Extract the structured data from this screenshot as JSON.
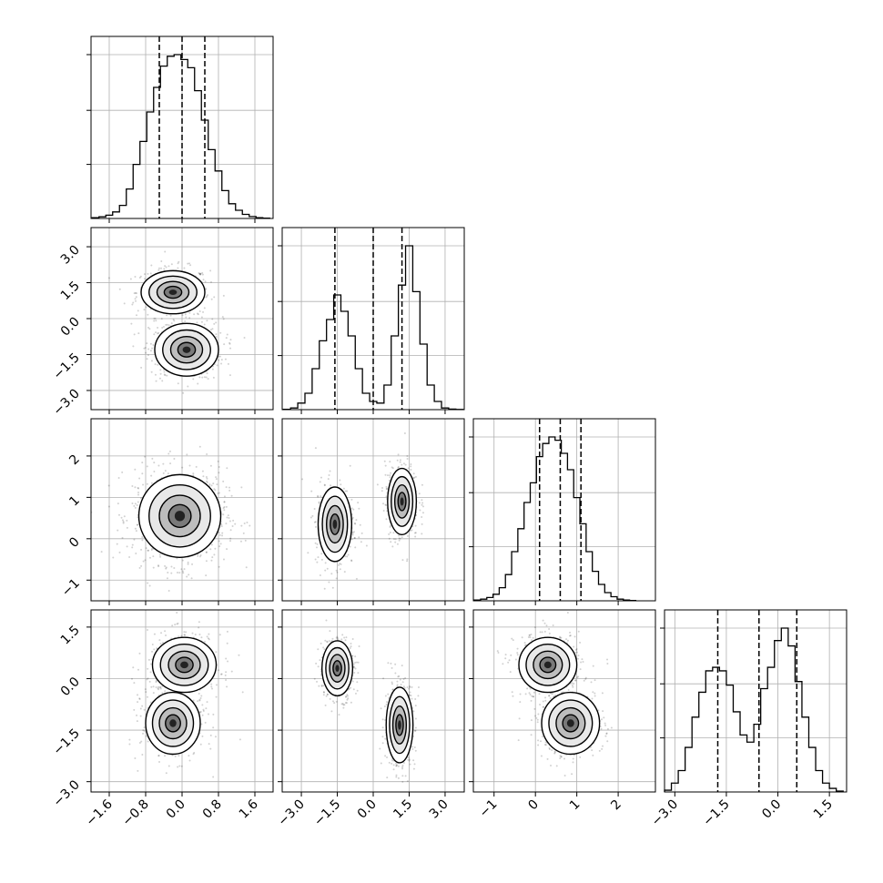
{
  "figure": {
    "type": "corner-plot",
    "params": 4,
    "axes_ranges": [
      [
        -2.0,
        2.0
      ],
      [
        -3.8,
        3.8
      ],
      [
        -1.5,
        2.9
      ],
      [
        -3.3,
        2.0
      ]
    ],
    "grid": true,
    "tick_labels_shared": {
      "p0": [
        "−1.6",
        "−0.8",
        "0.0",
        "0.8",
        "1.6"
      ],
      "p1": [
        "−3.0",
        "−1.5",
        "0.0",
        "1.5",
        "3.0"
      ],
      "p2": [
        "−1",
        "0",
        "1",
        "2"
      ],
      "p3": [
        "−3.0",
        "−1.5",
        "0.0",
        "1.5"
      ]
    }
  },
  "chart_data": [
    {
      "type": "histogram",
      "param": "p0",
      "x_range": [
        -2.0,
        2.0
      ],
      "bins": [
        -1.9,
        -1.75,
        -1.6,
        -1.45,
        -1.3,
        -1.15,
        -1.0,
        -0.85,
        -0.7,
        -0.55,
        -0.4,
        -0.25,
        -0.1,
        0.05,
        0.2,
        0.35,
        0.5,
        0.65,
        0.8,
        0.95,
        1.1,
        1.25,
        1.4,
        1.55,
        1.7,
        1.85
      ],
      "counts": [
        0.005,
        0.01,
        0.02,
        0.04,
        0.08,
        0.18,
        0.33,
        0.47,
        0.65,
        0.8,
        0.93,
        0.99,
        1.0,
        0.97,
        0.92,
        0.78,
        0.6,
        0.42,
        0.29,
        0.17,
        0.09,
        0.05,
        0.025,
        0.012,
        0.005,
        0.002
      ],
      "quantiles": [
        -0.5,
        0.0,
        0.5
      ]
    },
    {
      "type": "histogram",
      "param": "p1",
      "x_range": [
        -3.8,
        3.8
      ],
      "bins": [
        -3.6,
        -3.3,
        -3.0,
        -2.7,
        -2.4,
        -2.1,
        -1.8,
        -1.5,
        -1.2,
        -0.9,
        -0.6,
        -0.3,
        0.0,
        0.3,
        0.6,
        0.9,
        1.2,
        1.5,
        1.8,
        2.1,
        2.4,
        2.7,
        3.0,
        3.3,
        3.6
      ],
      "counts": [
        0.002,
        0.01,
        0.04,
        0.1,
        0.25,
        0.42,
        0.55,
        0.7,
        0.6,
        0.45,
        0.25,
        0.1,
        0.05,
        0.04,
        0.15,
        0.45,
        0.76,
        1.0,
        0.72,
        0.4,
        0.15,
        0.05,
        0.01,
        0.003,
        0.001
      ],
      "quantiles": [
        -1.6,
        0.0,
        1.2
      ]
    },
    {
      "type": "histogram",
      "param": "p2",
      "x_range": [
        -1.5,
        2.9
      ],
      "bins": [
        -1.4,
        -1.25,
        -1.1,
        -0.95,
        -0.8,
        -0.65,
        -0.5,
        -0.35,
        -0.2,
        -0.05,
        0.1,
        0.25,
        0.4,
        0.55,
        0.7,
        0.85,
        1.0,
        1.15,
        1.3,
        1.45,
        1.6,
        1.75,
        1.9,
        2.05,
        2.2,
        2.35
      ],
      "counts": [
        0.005,
        0.01,
        0.02,
        0.04,
        0.08,
        0.16,
        0.3,
        0.44,
        0.6,
        0.72,
        0.88,
        0.96,
        1.0,
        0.98,
        0.9,
        0.8,
        0.63,
        0.47,
        0.3,
        0.18,
        0.1,
        0.05,
        0.025,
        0.01,
        0.005,
        0.002
      ],
      "quantiles": [
        0.1,
        0.6,
        1.1
      ]
    },
    {
      "type": "histogram",
      "param": "p3",
      "x_range": [
        -3.3,
        2.0
      ],
      "bins": [
        -3.2,
        -3.0,
        -2.8,
        -2.6,
        -2.4,
        -2.2,
        -2.0,
        -1.8,
        -1.6,
        -1.4,
        -1.2,
        -1.0,
        -0.8,
        -0.6,
        -0.4,
        -0.2,
        0.0,
        0.2,
        0.4,
        0.6,
        0.8,
        1.0,
        1.2,
        1.4,
        1.6,
        1.8
      ],
      "counts": [
        0.01,
        0.05,
        0.12,
        0.25,
        0.42,
        0.56,
        0.68,
        0.7,
        0.68,
        0.6,
        0.45,
        0.32,
        0.28,
        0.38,
        0.58,
        0.7,
        0.85,
        0.92,
        0.82,
        0.62,
        0.42,
        0.25,
        0.12,
        0.05,
        0.02,
        0.005
      ],
      "quantiles": [
        -1.75,
        -0.55,
        0.55
      ]
    },
    {
      "type": "contour-2d",
      "x_param": "p0",
      "y_param": "p1",
      "modes": [
        {
          "x": -0.2,
          "y": 1.1,
          "sx": 0.35,
          "sy": 0.45
        },
        {
          "x": 0.1,
          "y": -1.3,
          "sx": 0.35,
          "sy": 0.55
        }
      ]
    },
    {
      "type": "contour-2d",
      "x_param": "p0",
      "y_param": "p2",
      "modes": [
        {
          "x": -0.05,
          "y": 0.55,
          "sx": 0.45,
          "sy": 0.5
        }
      ]
    },
    {
      "type": "contour-2d",
      "x_param": "p1",
      "y_param": "p2",
      "modes": [
        {
          "x": -1.6,
          "y": 0.35,
          "sx": 0.35,
          "sy": 0.45
        },
        {
          "x": 1.2,
          "y": 0.9,
          "sx": 0.3,
          "sy": 0.4
        }
      ]
    },
    {
      "type": "contour-2d",
      "x_param": "p0",
      "y_param": "p3",
      "modes": [
        {
          "x": 0.05,
          "y": 0.4,
          "sx": 0.35,
          "sy": 0.4
        },
        {
          "x": -0.2,
          "y": -1.3,
          "sx": 0.3,
          "sy": 0.45
        }
      ]
    },
    {
      "type": "contour-2d",
      "x_param": "p1",
      "y_param": "p3",
      "modes": [
        {
          "x": -1.5,
          "y": 0.3,
          "sx": 0.32,
          "sy": 0.4
        },
        {
          "x": 1.1,
          "y": -1.35,
          "sx": 0.28,
          "sy": 0.55
        }
      ]
    },
    {
      "type": "contour-2d",
      "x_param": "p2",
      "y_param": "p3",
      "modes": [
        {
          "x": 0.3,
          "y": 0.4,
          "sx": 0.35,
          "sy": 0.4
        },
        {
          "x": 0.85,
          "y": -1.3,
          "sx": 0.35,
          "sy": 0.45
        }
      ]
    }
  ]
}
